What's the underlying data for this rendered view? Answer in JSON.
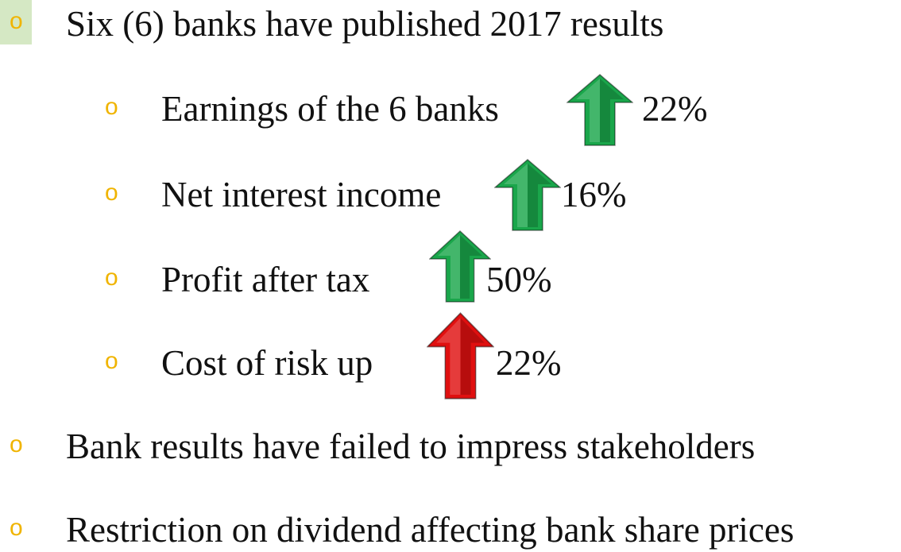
{
  "bullets": [
    {
      "text": "Six (6) banks have published 2017 results",
      "subitems": [
        {
          "text": "Earnings of  the 6 banks",
          "change": "22%",
          "arrow_color": "#1aa64b"
        },
        {
          "text": "Net interest income",
          "change": "16%",
          "arrow_color": "#1aa64b"
        },
        {
          "text": "Profit after tax",
          "change": "50%",
          "arrow_color": "#1aa64b"
        },
        {
          "text": "Cost of  risk up",
          "change": "22%",
          "arrow_color": "#e01010"
        }
      ]
    },
    {
      "text": "Bank results have failed to impress stakeholders"
    },
    {
      "text": "Restriction on dividend affecting bank share prices"
    }
  ]
}
